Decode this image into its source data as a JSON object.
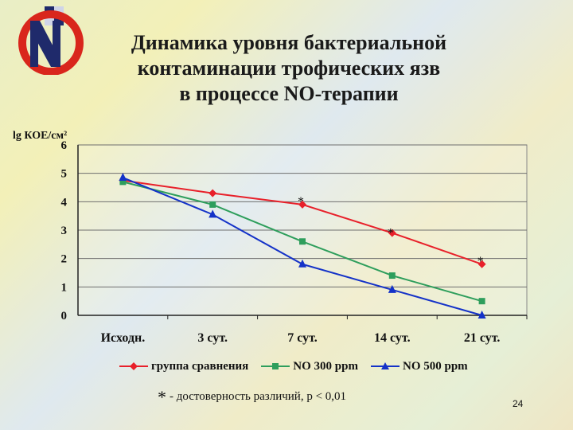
{
  "slide": {
    "title_lines": [
      "Динамика уровня бактериальной",
      "контаминации трофических язв",
      "в процессе NO-терапии"
    ],
    "logo_letters": "NO",
    "footnote_star": "*",
    "footnote_text": "- достоверность различий,  p < 0,01",
    "page_number": "24"
  },
  "chart_data": {
    "type": "line",
    "ylabel": "lg КОЕ/см²",
    "categories": [
      "Исходн.",
      "3 сут.",
      "7 сут.",
      "14 сут.",
      "21 сут."
    ],
    "ylim": [
      0,
      6
    ],
    "yticks": [
      0,
      1,
      2,
      3,
      4,
      5,
      6
    ],
    "grid": true,
    "legend_position": "bottom",
    "series": [
      {
        "name": "группа сравнения",
        "color": "#e8202a",
        "marker": "diamond",
        "values": [
          4.75,
          4.3,
          3.9,
          2.9,
          1.8
        ]
      },
      {
        "name": "NO 300 ppm",
        "color": "#2e9e5c",
        "marker": "square",
        "values": [
          4.7,
          3.9,
          2.6,
          1.4,
          0.5
        ]
      },
      {
        "name": "NO 500 ppm",
        "color": "#1432c8",
        "marker": "triangle",
        "values": [
          4.85,
          3.55,
          1.8,
          0.9,
          0.0
        ]
      }
    ],
    "annotations": [
      {
        "text": "*",
        "category": "7 сут.",
        "y": 4.2
      },
      {
        "text": "*",
        "category": "14 сут.",
        "y": 3.1
      },
      {
        "text": "*",
        "category": "21 сут.",
        "y": 2.1
      }
    ]
  }
}
